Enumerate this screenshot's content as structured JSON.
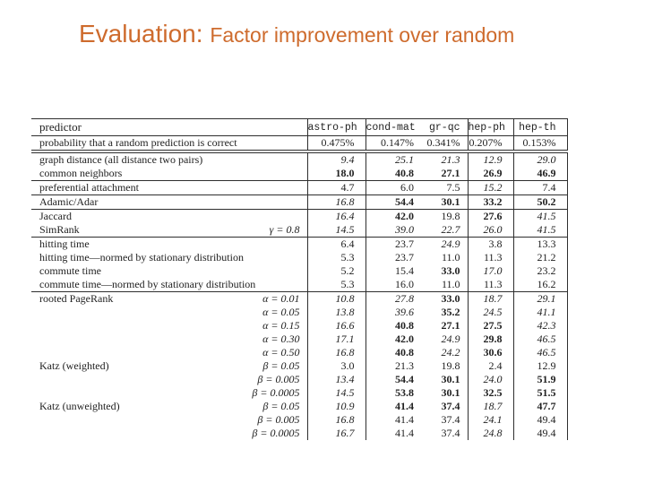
{
  "title": {
    "prefix": "Evaluation: ",
    "rest": "Factor improvement over random",
    "color": "#CE6B2D"
  },
  "table": {
    "columns": [
      "predictor",
      "astro-ph",
      "cond-mat",
      "gr-qc",
      "hep-ph",
      "hep-th"
    ],
    "baseline_row": {
      "label": "probability that a random prediction is correct",
      "values": [
        "0.475%",
        "0.147%",
        "0.341%",
        "0.207%",
        "0.153%"
      ]
    },
    "rows": [
      {
        "label": "graph distance (all distance two pairs)",
        "param": "",
        "values": [
          "9.4",
          "25.1",
          "21.3",
          "12.9",
          "29.0"
        ],
        "styles": [
          "i",
          "i",
          "i",
          "i",
          "i"
        ],
        "sep": false
      },
      {
        "label": "common neighbors",
        "param": "",
        "values": [
          "18.0",
          "40.8",
          "27.1",
          "26.9",
          "46.9"
        ],
        "styles": [
          "b",
          "b",
          "b",
          "b",
          "b"
        ],
        "sep": false
      },
      {
        "label": "preferential attachment",
        "param": "",
        "values": [
          "4.7",
          "6.0",
          "7.5",
          "15.2",
          "7.4"
        ],
        "styles": [
          "n",
          "n",
          "n",
          "i",
          "n"
        ],
        "sep": true
      },
      {
        "label": "Adamic/Adar",
        "param": "",
        "values": [
          "16.8",
          "54.4",
          "30.1",
          "33.2",
          "50.2"
        ],
        "styles": [
          "i",
          "b",
          "b",
          "b",
          "b"
        ],
        "sep": true
      },
      {
        "label": "Jaccard",
        "param": "",
        "values": [
          "16.4",
          "42.0",
          "19.8",
          "27.6",
          "41.5"
        ],
        "styles": [
          "i",
          "b",
          "n",
          "b",
          "i"
        ],
        "sep": true
      },
      {
        "label": "SimRank",
        "param": "γ = 0.8",
        "values": [
          "14.5",
          "39.0",
          "22.7",
          "26.0",
          "41.5"
        ],
        "styles": [
          "i",
          "i",
          "i",
          "i",
          "i"
        ],
        "sep": false
      },
      {
        "label": "hitting time",
        "param": "",
        "values": [
          "6.4",
          "23.7",
          "24.9",
          "3.8",
          "13.3"
        ],
        "styles": [
          "n",
          "n",
          "i",
          "n",
          "n"
        ],
        "sep": true
      },
      {
        "label": "hitting time—normed by stationary distribution",
        "param": "",
        "values": [
          "5.3",
          "23.7",
          "11.0",
          "11.3",
          "21.2"
        ],
        "styles": [
          "n",
          "n",
          "n",
          "n",
          "n"
        ],
        "sep": false
      },
      {
        "label": "commute time",
        "param": "",
        "values": [
          "5.2",
          "15.4",
          "33.0",
          "17.0",
          "23.2"
        ],
        "styles": [
          "n",
          "n",
          "b",
          "i",
          "n"
        ],
        "sep": false
      },
      {
        "label": "commute time—normed by stationary distribution",
        "param": "",
        "values": [
          "5.3",
          "16.0",
          "11.0",
          "11.3",
          "16.2"
        ],
        "styles": [
          "n",
          "n",
          "n",
          "n",
          "n"
        ],
        "sep": false
      },
      {
        "label": "rooted PageRank",
        "param": "α = 0.01",
        "values": [
          "10.8",
          "27.8",
          "33.0",
          "18.7",
          "29.1"
        ],
        "styles": [
          "i",
          "i",
          "b",
          "i",
          "i"
        ],
        "sep": true
      },
      {
        "label": "",
        "param": "α = 0.05",
        "values": [
          "13.8",
          "39.6",
          "35.2",
          "24.5",
          "41.1"
        ],
        "styles": [
          "i",
          "i",
          "b",
          "i",
          "i"
        ],
        "sep": false
      },
      {
        "label": "",
        "param": "α = 0.15",
        "values": [
          "16.6",
          "40.8",
          "27.1",
          "27.5",
          "42.3"
        ],
        "styles": [
          "i",
          "b",
          "b",
          "b",
          "i"
        ],
        "sep": false
      },
      {
        "label": "",
        "param": "α = 0.30",
        "values": [
          "17.1",
          "42.0",
          "24.9",
          "29.8",
          "46.5"
        ],
        "styles": [
          "i",
          "b",
          "i",
          "b",
          "i"
        ],
        "sep": false
      },
      {
        "label": "",
        "param": "α = 0.50",
        "values": [
          "16.8",
          "40.8",
          "24.2",
          "30.6",
          "46.5"
        ],
        "styles": [
          "i",
          "b",
          "i",
          "b",
          "i"
        ],
        "sep": false
      },
      {
        "label": "Katz (weighted)",
        "param": "β = 0.05",
        "values": [
          "3.0",
          "21.3",
          "19.8",
          "2.4",
          "12.9"
        ],
        "styles": [
          "n",
          "n",
          "n",
          "n",
          "n"
        ],
        "sep": false
      },
      {
        "label": "",
        "param": "β = 0.005",
        "values": [
          "13.4",
          "54.4",
          "30.1",
          "24.0",
          "51.9"
        ],
        "styles": [
          "i",
          "b",
          "b",
          "i",
          "b"
        ],
        "sep": false
      },
      {
        "label": "",
        "param": "β = 0.0005",
        "values": [
          "14.5",
          "53.8",
          "30.1",
          "32.5",
          "51.5"
        ],
        "styles": [
          "i",
          "b",
          "b",
          "b",
          "b"
        ],
        "sep": false
      },
      {
        "label": "Katz (unweighted)",
        "param": "β = 0.05",
        "values": [
          "10.9",
          "41.4",
          "37.4",
          "18.7",
          "47.7"
        ],
        "styles": [
          "i",
          "b",
          "b",
          "i",
          "b"
        ],
        "sep": false
      },
      {
        "label": "",
        "param": "β = 0.005",
        "values": [
          "16.8",
          "41.4",
          "37.4",
          "24.1",
          "49.4"
        ],
        "styles": [
          "i",
          "n",
          "n",
          "i",
          "n"
        ],
        "sep": false
      },
      {
        "label": "",
        "param": "β = 0.0005",
        "values": [
          "16.7",
          "41.4",
          "37.4",
          "24.8",
          "49.4"
        ],
        "styles": [
          "i",
          "n",
          "n",
          "i",
          "n"
        ],
        "sep": false
      }
    ]
  }
}
